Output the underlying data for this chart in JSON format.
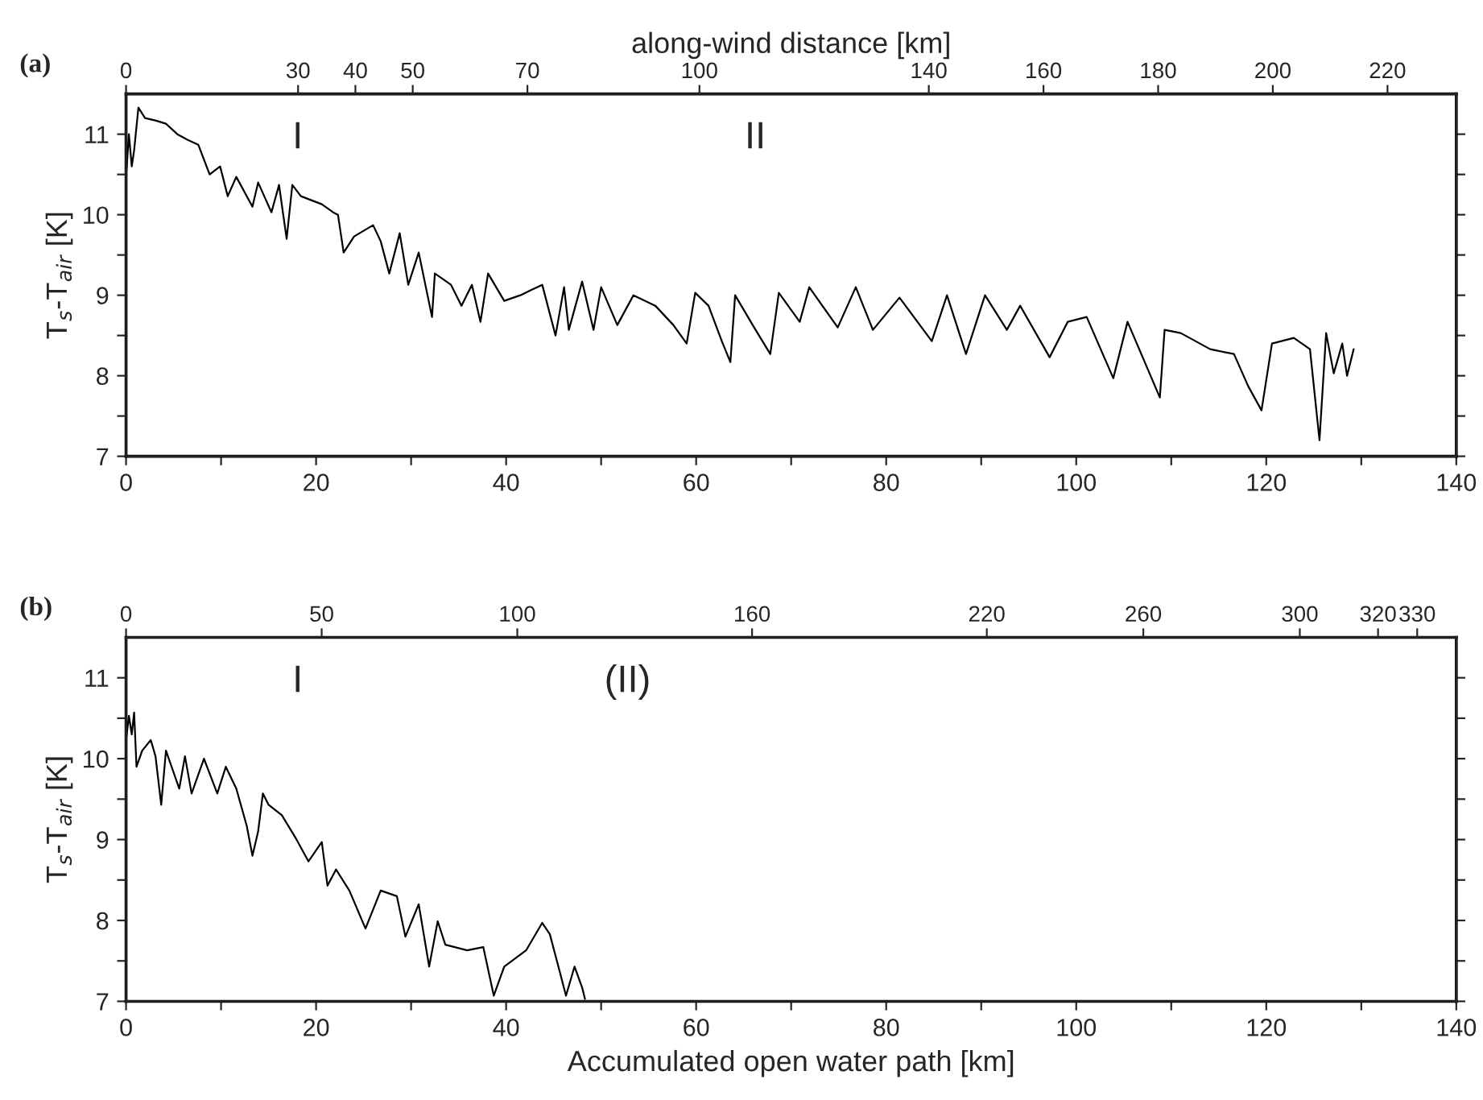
{
  "chart_data": [
    {
      "type": "line",
      "x2label": "along-wind distance [km]",
      "ylabel": "T$_{s}$-T$_{air}$ [K]",
      "annotations": [
        "(a)",
        "I",
        "II"
      ],
      "xlim": [
        0,
        140
      ],
      "xticks": [
        0,
        {
          "value": 10,
          "label": null
        },
        20,
        {
          "value": 30,
          "label": null
        },
        40,
        {
          "value": 50,
          "label": null
        },
        60,
        {
          "value": 70,
          "label": null
        },
        80,
        {
          "value": 90,
          "label": null
        },
        100,
        {
          "value": 110,
          "label": null
        },
        120,
        {
          "value": 130,
          "label": null
        },
        140
      ],
      "x2lim": [
        0,
        232
      ],
      "x2ticks": [
        0,
        30,
        40,
        50,
        70,
        100,
        140,
        160,
        180,
        200,
        220
      ],
      "ylim": [
        7,
        11.5
      ],
      "yticks": [
        7,
        {
          "value": 7.5,
          "label": null
        },
        8,
        {
          "value": 8.5,
          "label": null
        },
        9,
        {
          "value": 9.5,
          "label": null
        },
        10,
        {
          "value": 10.5,
          "label": null
        },
        11
      ],
      "series": [
        {
          "color": "#000000",
          "x": [
            0,
            0.3,
            0.6,
            0.85,
            1.3,
            2.0,
            3.1,
            4.2,
            5.4,
            6.5,
            7.6,
            8.8,
            9.9,
            10.7,
            11.6,
            13.3,
            13.9,
            15.3,
            16.1,
            16.9,
            17.5,
            18.4,
            20.6,
            21.8,
            22.3,
            22.9,
            24.0,
            26.0,
            26.8,
            27.7,
            28.8,
            29.7,
            30.8,
            32.2,
            32.5,
            34.2,
            35.3,
            36.4,
            37.3,
            38.1,
            39.8,
            41.5,
            42.7,
            43.8,
            45.2,
            46.1,
            46.6,
            48.0,
            49.2,
            50.0,
            51.7,
            53.4,
            55.7,
            57.6,
            59.0,
            59.9,
            61.3,
            62.7,
            63.6,
            64.1,
            66.1,
            67.8,
            68.7,
            70.9,
            71.9,
            74.9,
            76.8,
            78.6,
            81.4,
            84.8,
            86.4,
            88.4,
            90.4,
            92.7,
            94.1,
            97.2,
            99.1,
            101.1,
            103.9,
            105.4,
            108.8,
            109.3,
            111.0,
            114.1,
            116.6,
            118.1,
            119.5,
            120.6,
            122.9,
            124.6,
            125.6,
            126.3,
            127.1,
            128.0,
            128.5,
            129.2
          ],
          "values": [
            10.47,
            11.0,
            10.6,
            10.8,
            11.33,
            11.2,
            11.17,
            11.13,
            11.0,
            10.93,
            10.87,
            10.5,
            10.6,
            10.23,
            10.47,
            10.1,
            10.4,
            10.03,
            10.37,
            9.7,
            10.37,
            10.23,
            10.13,
            10.03,
            10.0,
            9.53,
            9.73,
            9.87,
            9.67,
            9.27,
            9.77,
            9.13,
            9.53,
            8.73,
            9.27,
            9.13,
            8.87,
            9.13,
            8.67,
            9.27,
            8.93,
            9.0,
            9.07,
            9.13,
            8.5,
            9.1,
            8.57,
            9.17,
            8.57,
            9.1,
            8.63,
            9.0,
            8.87,
            8.63,
            8.4,
            9.03,
            8.87,
            8.43,
            8.17,
            9.0,
            8.6,
            8.27,
            9.03,
            8.67,
            9.1,
            8.6,
            9.1,
            8.57,
            8.97,
            8.43,
            9.0,
            8.27,
            9.0,
            8.57,
            8.87,
            8.23,
            8.67,
            8.73,
            7.97,
            8.67,
            7.73,
            8.57,
            8.53,
            8.33,
            8.27,
            7.87,
            7.57,
            8.4,
            8.47,
            8.33,
            7.2,
            8.53,
            8.03,
            8.4,
            8.0,
            8.33
          ]
        }
      ]
    },
    {
      "type": "line",
      "xlabel": "Accumulated open water path [km]",
      "ylabel": "T$_{s}$-T$_{air}$ [K]",
      "annotations": [
        "(b)",
        "I",
        "(II)"
      ],
      "xlim": [
        0,
        140
      ],
      "xticks": [
        0,
        {
          "value": 10,
          "label": null
        },
        20,
        {
          "value": 30,
          "label": null
        },
        40,
        {
          "value": 50,
          "label": null
        },
        60,
        {
          "value": 70,
          "label": null
        },
        80,
        {
          "value": 90,
          "label": null
        },
        100,
        {
          "value": 110,
          "label": null
        },
        120,
        {
          "value": 130,
          "label": null
        },
        140
      ],
      "x2lim": [
        0,
        340
      ],
      "x2ticks": [
        0,
        50,
        100,
        160,
        220,
        260,
        300,
        320,
        330
      ],
      "ylim": [
        7,
        11.5
      ],
      "yticks": [
        7,
        {
          "value": 7.5,
          "label": null
        },
        8,
        {
          "value": 8.5,
          "label": null
        },
        9,
        {
          "value": 9.5,
          "label": null
        },
        10,
        {
          "value": 10.5,
          "label": null
        },
        11
      ],
      "series": [
        {
          "color": "#000000",
          "x": [
            0,
            0.3,
            0.6,
            0.85,
            1.1,
            1.7,
            2.6,
            3.1,
            3.7,
            4.2,
            5.6,
            6.2,
            6.9,
            8.2,
            9.6,
            10.5,
            11.6,
            12.7,
            13.3,
            13.9,
            14.4,
            15.0,
            16.4,
            17.8,
            19.2,
            20.6,
            21.2,
            22.1,
            23.5,
            25.2,
            26.8,
            28.5,
            29.4,
            30.8,
            31.9,
            32.8,
            33.6,
            35.9,
            37.6,
            38.7,
            39.8,
            42.1,
            43.8,
            44.6,
            45.5,
            46.3,
            47.2,
            48.0,
            48.3
          ],
          "values": [
            10.23,
            10.53,
            10.3,
            10.57,
            9.9,
            10.1,
            10.23,
            10.03,
            9.43,
            10.1,
            9.63,
            10.03,
            9.57,
            10.0,
            9.57,
            9.9,
            9.63,
            9.17,
            8.8,
            9.1,
            9.57,
            9.43,
            9.3,
            9.03,
            8.73,
            8.97,
            8.43,
            8.63,
            8.37,
            7.9,
            8.37,
            8.3,
            7.8,
            8.2,
            7.43,
            7.99,
            7.7,
            7.63,
            7.67,
            7.07,
            7.43,
            7.63,
            7.97,
            7.83,
            7.43,
            7.07,
            7.43,
            7.17,
            7.03
          ]
        }
      ]
    }
  ]
}
